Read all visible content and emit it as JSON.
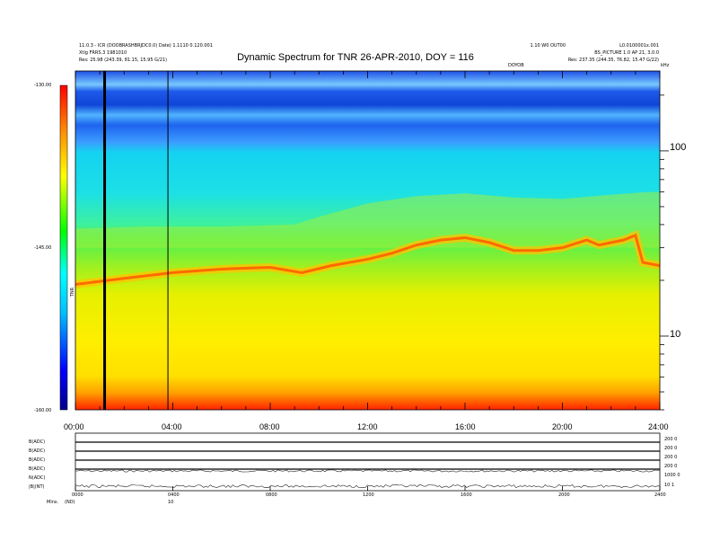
{
  "chart_data": {
    "type": "heatmap",
    "title": "Dynamic Spectrum for TNR 26-APR-2010, DOY = 116",
    "header_left": [
      "11.0.3 - ICR (DOOBRASHBRJDC0.0) Date) 1.1110 0.120.001",
      "Xtlg FRRS.3 1981010",
      "Res: 25.98 (243.39, 81.15, 15.95 G/21)"
    ],
    "header_right": [
      "1.10 W0 OUT00",
      "L0.0100001x.001",
      "BS_PICTURE 1.0 AP 21, 3.0.0",
      "Res: 237.35 (244.35, 76.82, 15.47 G/22)"
    ],
    "x_label_top": "DOYOB",
    "colorbar": {
      "label": "TNR",
      "ticks": [
        "-130.00",
        "-145.00",
        "-160.00"
      ],
      "range": [
        -160,
        -130
      ]
    },
    "x_ticks": [
      "00:00",
      "04:00",
      "08:00",
      "12:00",
      "16:00",
      "20:00",
      "24:00"
    ],
    "x_range_hours": [
      0,
      24
    ],
    "y_axis": {
      "scale": "log",
      "unit": "kHz",
      "ticks": [
        "100",
        "10"
      ],
      "range": [
        4,
        270
      ]
    },
    "features": {
      "band_edge_khz": [
        {
          "t": 0,
          "f": 38
        },
        {
          "t": 3,
          "f": 39
        },
        {
          "t": 6,
          "f": 39
        },
        {
          "t": 9,
          "f": 40
        },
        {
          "t": 10,
          "f": 44
        },
        {
          "t": 12,
          "f": 52
        },
        {
          "t": 14,
          "f": 57
        },
        {
          "t": 16,
          "f": 59
        },
        {
          "t": 18,
          "f": 56
        },
        {
          "t": 20,
          "f": 55
        },
        {
          "t": 22,
          "f": 58
        },
        {
          "t": 23.5,
          "f": 60
        },
        {
          "t": 24,
          "f": 60
        }
      ],
      "emission_line_khz": [
        {
          "t": 0,
          "f": 19
        },
        {
          "t": 2,
          "f": 20.5
        },
        {
          "t": 4,
          "f": 22
        },
        {
          "t": 6,
          "f": 23
        },
        {
          "t": 8,
          "f": 23.5
        },
        {
          "t": 9.3,
          "f": 22
        },
        {
          "t": 10.5,
          "f": 24
        },
        {
          "t": 12,
          "f": 26
        },
        {
          "t": 13,
          "f": 28
        },
        {
          "t": 14,
          "f": 31
        },
        {
          "t": 15,
          "f": 33
        },
        {
          "t": 16,
          "f": 34
        },
        {
          "t": 17,
          "f": 32
        },
        {
          "t": 18,
          "f": 29
        },
        {
          "t": 19,
          "f": 29
        },
        {
          "t": 20,
          "f": 30
        },
        {
          "t": 21,
          "f": 33
        },
        {
          "t": 21.5,
          "f": 31
        },
        {
          "t": 22.5,
          "f": 33
        },
        {
          "t": 23,
          "f": 35
        },
        {
          "t": 23.3,
          "f": 25
        },
        {
          "t": 24,
          "f": 24
        }
      ],
      "data_gap_times_h": [
        1.2,
        3.8
      ]
    },
    "panel_labels": [
      "B(ADC)",
      "B(ADC)",
      "B(ADC)",
      "B(ADC)",
      "N(ADC)",
      "|B|(NT)"
    ],
    "right_axis_labels": [
      "200 0",
      "200 0",
      "200 0",
      "200 0",
      "1000 0",
      "10 1"
    ],
    "bottom_ticks": [
      "0000",
      "0400",
      "0800",
      "1200",
      "1600",
      "2000",
      "2400"
    ],
    "bottom_labels": {
      "left": "Mins.",
      "left2": "(ND)",
      "mid": "10"
    },
    "colors": {
      "background": "#ffffff",
      "axis": "#000000",
      "colormap": [
        "#00008b",
        "#0000ff",
        "#00bfff",
        "#00ffff",
        "#00ff00",
        "#ffff00",
        "#ff8c00",
        "#ff0000"
      ]
    }
  }
}
